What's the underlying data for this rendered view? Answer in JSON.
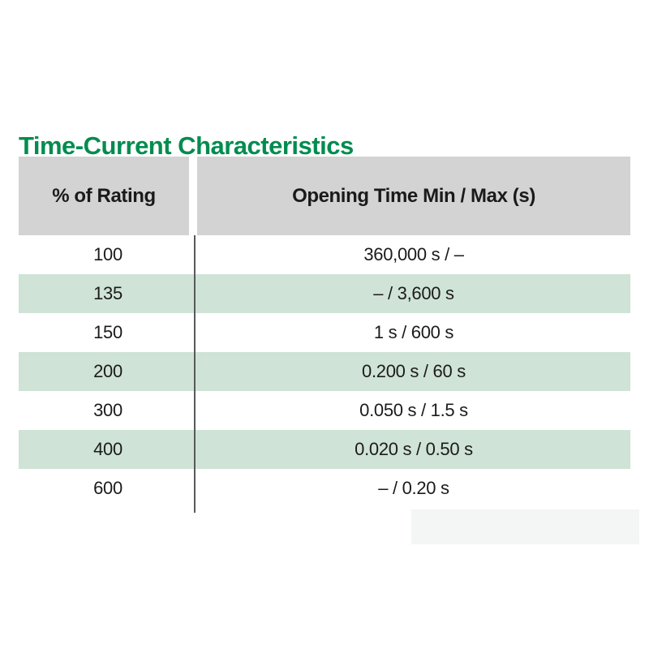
{
  "title": {
    "text": "Time-Current Characteristics",
    "color": "#008c4f"
  },
  "table": {
    "columns": [
      {
        "label": "% of Rating"
      },
      {
        "label": "Opening Time Min / Max (s)"
      }
    ],
    "rows": [
      {
        "rating": "100",
        "opening_time": "360,000 s / –"
      },
      {
        "rating": "135",
        "opening_time": "– / 3,600 s"
      },
      {
        "rating": "150",
        "opening_time": "1 s / 600 s"
      },
      {
        "rating": "200",
        "opening_time": "0.200 s / 60 s"
      },
      {
        "rating": "300",
        "opening_time": "0.050 s / 1.5 s"
      },
      {
        "rating": "400",
        "opening_time": "0.020 s / 0.50 s"
      },
      {
        "rating": "600",
        "opening_time": "– / 0.20 s"
      }
    ],
    "style": {
      "header_background": "#d2d3d2",
      "alt_row_background": "#cfe3d6",
      "divider_color": "#58595b",
      "text_color": "#1b1b1b"
    }
  }
}
